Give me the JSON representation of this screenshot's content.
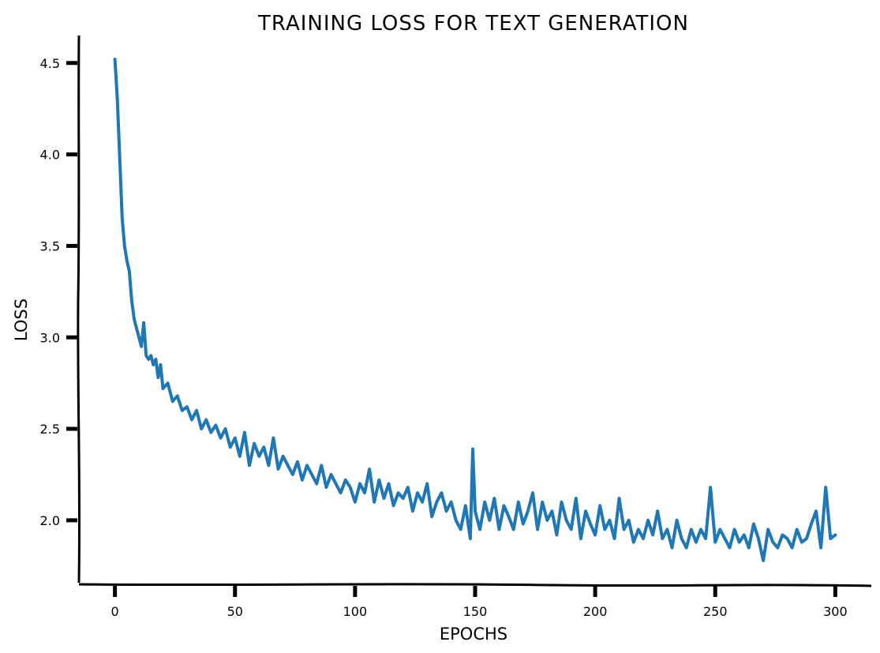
{
  "chart_data": {
    "type": "line",
    "title": "TRAINING LOSS FOR TEXT GENERATION",
    "xlabel": "EPOCHS",
    "ylabel": "LOSS",
    "xlim": [
      -15,
      315
    ],
    "ylim": [
      1.65,
      4.65
    ],
    "x_ticks": [
      0,
      50,
      100,
      150,
      200,
      250,
      300
    ],
    "y_ticks": [
      2.0,
      2.5,
      3.0,
      3.5,
      4.0,
      4.5
    ],
    "x_tick_labels": [
      "0",
      "50",
      "100",
      "150",
      "200",
      "250",
      "300"
    ],
    "y_tick_labels": [
      "2.0",
      "2.5",
      "3.0",
      "3.5",
      "4.0",
      "4.5"
    ],
    "grid": false,
    "legend": "none",
    "series_color": "#1f77b4",
    "series": [
      {
        "x": [
          0,
          1,
          2,
          3,
          4,
          5,
          6,
          7,
          8,
          9,
          10,
          11,
          12,
          13,
          14,
          15,
          16,
          17,
          18,
          19,
          20,
          22,
          24,
          26,
          28,
          30,
          32,
          34,
          36,
          38,
          40,
          42,
          44,
          46,
          48,
          50,
          52,
          54,
          56,
          58,
          60,
          62,
          64,
          66,
          68,
          70,
          72,
          74,
          76,
          78,
          80,
          82,
          84,
          86,
          88,
          90,
          92,
          94,
          96,
          98,
          100,
          102,
          104,
          106,
          108,
          110,
          112,
          114,
          116,
          118,
          120,
          122,
          124,
          126,
          128,
          130,
          132,
          134,
          136,
          138,
          140,
          142,
          144,
          146,
          148,
          149,
          150,
          152,
          154,
          156,
          158,
          160,
          162,
          164,
          166,
          168,
          170,
          172,
          174,
          176,
          178,
          180,
          182,
          184,
          186,
          188,
          190,
          192,
          194,
          196,
          198,
          200,
          202,
          204,
          206,
          208,
          210,
          212,
          214,
          216,
          218,
          220,
          222,
          224,
          226,
          228,
          230,
          232,
          234,
          236,
          238,
          240,
          242,
          244,
          246,
          248,
          250,
          252,
          254,
          256,
          258,
          260,
          262,
          264,
          266,
          268,
          270,
          272,
          274,
          276,
          278,
          280,
          282,
          284,
          286,
          288,
          290,
          292,
          294,
          296,
          298,
          300
        ],
        "y": [
          4.52,
          4.3,
          3.98,
          3.65,
          3.5,
          3.42,
          3.36,
          3.2,
          3.1,
          3.05,
          3.0,
          2.95,
          3.08,
          2.9,
          2.88,
          2.9,
          2.85,
          2.88,
          2.78,
          2.85,
          2.72,
          2.75,
          2.65,
          2.68,
          2.6,
          2.62,
          2.55,
          2.6,
          2.5,
          2.55,
          2.48,
          2.52,
          2.45,
          2.5,
          2.4,
          2.45,
          2.35,
          2.48,
          2.3,
          2.42,
          2.35,
          2.4,
          2.3,
          2.45,
          2.28,
          2.35,
          2.3,
          2.25,
          2.32,
          2.22,
          2.3,
          2.25,
          2.2,
          2.3,
          2.18,
          2.25,
          2.2,
          2.15,
          2.22,
          2.18,
          2.1,
          2.2,
          2.15,
          2.28,
          2.1,
          2.22,
          2.12,
          2.2,
          2.08,
          2.15,
          2.12,
          2.18,
          2.05,
          2.15,
          2.1,
          2.2,
          2.02,
          2.1,
          2.15,
          2.05,
          2.1,
          2.0,
          1.95,
          2.08,
          1.9,
          2.39,
          2.05,
          1.95,
          2.1,
          2.0,
          2.12,
          1.95,
          2.08,
          2.02,
          1.95,
          2.1,
          1.98,
          2.05,
          2.15,
          1.95,
          2.1,
          2.0,
          2.05,
          1.92,
          2.1,
          2.0,
          1.95,
          2.12,
          1.9,
          2.05,
          1.98,
          1.92,
          2.08,
          1.95,
          2.0,
          1.9,
          2.12,
          1.95,
          2.0,
          1.88,
          1.95,
          1.9,
          2.0,
          1.92,
          2.05,
          1.9,
          1.95,
          1.85,
          2.0,
          1.9,
          1.85,
          1.95,
          1.88,
          1.95,
          1.9,
          2.18,
          1.88,
          1.95,
          1.9,
          1.85,
          1.95,
          1.88,
          1.92,
          1.85,
          1.98,
          1.9,
          1.78,
          1.95,
          1.88,
          1.85,
          1.92,
          1.9,
          1.85,
          1.95,
          1.88,
          1.9,
          1.98,
          2.05,
          1.85,
          2.18,
          1.9,
          1.92
        ]
      }
    ]
  }
}
